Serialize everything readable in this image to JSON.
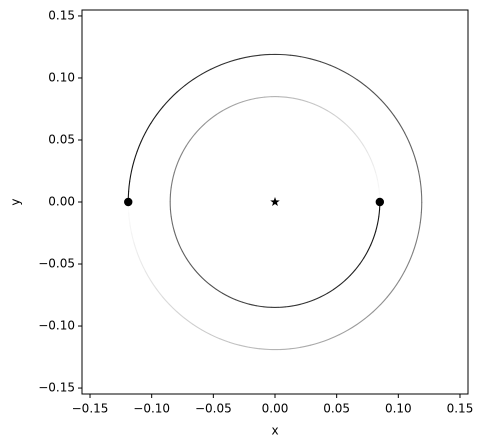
{
  "chart_data": {
    "type": "orbit",
    "xlabel": "x",
    "ylabel": "y",
    "xlim": [
      -0.1565,
      0.1565
    ],
    "ylim": [
      -0.1548,
      0.1548
    ],
    "xticks": [
      {
        "value": -0.15,
        "label": "−0.15"
      },
      {
        "value": -0.1,
        "label": "−0.10"
      },
      {
        "value": -0.05,
        "label": "−0.05"
      },
      {
        "value": 0,
        "label": "0.00"
      },
      {
        "value": 0.05,
        "label": "0.05"
      },
      {
        "value": 0.1,
        "label": "0.10"
      },
      {
        "value": 0.15,
        "label": "0.15"
      }
    ],
    "yticks": [
      {
        "value": -0.15,
        "label": "−0.15"
      },
      {
        "value": -0.1,
        "label": "−0.10"
      },
      {
        "value": -0.05,
        "label": "−0.05"
      },
      {
        "value": 0,
        "label": "0.00"
      },
      {
        "value": 0.05,
        "label": "0.05"
      },
      {
        "value": 0.1,
        "label": "0.10"
      },
      {
        "value": 0.15,
        "label": "0.15"
      }
    ],
    "bodies": [
      {
        "x": -0.119,
        "y": 0,
        "orbit_radius": 0.119,
        "color": "#000000"
      },
      {
        "x": 0.085,
        "y": 0,
        "orbit_radius": 0.085,
        "color": "#000000"
      }
    ],
    "star": {
      "x": 0,
      "y": 0,
      "color": "#000000"
    }
  }
}
